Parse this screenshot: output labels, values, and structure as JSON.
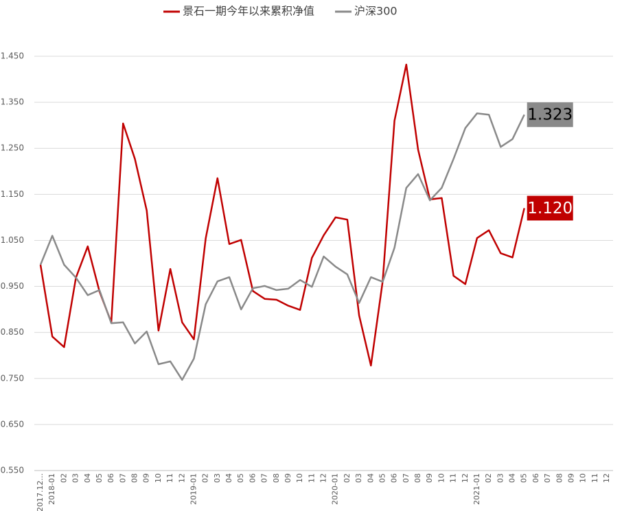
{
  "chart_data": {
    "type": "line",
    "categories": [
      "2017.12...",
      "2018-01",
      "02",
      "03",
      "04",
      "05",
      "06",
      "07",
      "08",
      "09",
      "10",
      "11",
      "12",
      "2019-01",
      "02",
      "03",
      "04",
      "05",
      "06",
      "07",
      "08",
      "09",
      "10",
      "11",
      "12",
      "2020-01",
      "02",
      "03",
      "04",
      "05",
      "06",
      "07",
      "08",
      "09",
      "10",
      "11",
      "12",
      "2021-01",
      "02",
      "03",
      "04",
      "05",
      "06",
      "07",
      "08",
      "09",
      "10",
      "11",
      "12"
    ],
    "series": [
      {
        "name": "景石一期今年以来累积净值",
        "color": "#c00000",
        "values": [
          0.997,
          0.841,
          0.818,
          0.969,
          1.037,
          0.939,
          0.872,
          1.304,
          1.227,
          1.115,
          0.854,
          0.988,
          0.872,
          0.835,
          1.054,
          1.185,
          1.042,
          1.051,
          0.94,
          0.923,
          0.921,
          0.908,
          0.899,
          1.012,
          1.061,
          1.1,
          1.095,
          0.887,
          0.778,
          0.961,
          1.31,
          1.432,
          1.247,
          1.139,
          1.142,
          0.973,
          0.955,
          1.055,
          1.072,
          1.022,
          1.013,
          1.12,
          null,
          null,
          null,
          null,
          null,
          null,
          null
        ],
        "value_labels": [
          null,
          null,
          null,
          null,
          null,
          null,
          null,
          null,
          null,
          null,
          null,
          null,
          null,
          null,
          null,
          null,
          null,
          null,
          null,
          null,
          null,
          null,
          null,
          null,
          null,
          null,
          null,
          null,
          null,
          null,
          null,
          null,
          null,
          null,
          null,
          null,
          null,
          null,
          null,
          null,
          null,
          "1.120",
          null,
          null,
          null,
          null,
          null,
          null,
          null
        ]
      },
      {
        "name": "沪深300",
        "color": "#898989",
        "values": [
          0.997,
          1.06,
          0.997,
          0.969,
          0.931,
          0.942,
          0.87,
          0.872,
          0.826,
          0.852,
          0.781,
          0.787,
          0.747,
          0.793,
          0.911,
          0.961,
          0.97,
          0.9,
          0.946,
          0.951,
          0.942,
          0.945,
          0.964,
          0.949,
          1.015,
          0.993,
          0.976,
          0.914,
          0.97,
          0.96,
          1.034,
          1.164,
          1.194,
          1.137,
          1.164,
          1.227,
          1.294,
          1.326,
          1.323,
          1.253,
          1.27,
          1.323,
          null,
          null,
          null,
          null,
          null,
          null,
          null
        ],
        "value_labels": [
          null,
          null,
          null,
          null,
          null,
          null,
          null,
          null,
          null,
          null,
          null,
          null,
          null,
          null,
          null,
          null,
          null,
          null,
          null,
          null,
          null,
          null,
          null,
          null,
          null,
          null,
          null,
          null,
          null,
          null,
          null,
          null,
          null,
          null,
          null,
          null,
          null,
          null,
          null,
          null,
          null,
          "1.323",
          null,
          null,
          null,
          null,
          null,
          null,
          null
        ]
      }
    ],
    "ylim": [
      0.55,
      1.45
    ],
    "yticks": [
      {
        "value": 0.55,
        "label": "0.550"
      },
      {
        "value": 0.65,
        "label": "0.650"
      },
      {
        "value": 0.75,
        "label": "0.750"
      },
      {
        "value": 0.85,
        "label": "0.850"
      },
      {
        "value": 0.95,
        "label": "0.950"
      },
      {
        "value": 1.05,
        "label": "1.050"
      },
      {
        "value": 1.15,
        "label": "1.150"
      },
      {
        "value": 1.25,
        "label": "1.250"
      },
      {
        "value": 1.35,
        "label": "1.350"
      },
      {
        "value": 1.45,
        "label": "1.450"
      }
    ],
    "grid": true
  }
}
